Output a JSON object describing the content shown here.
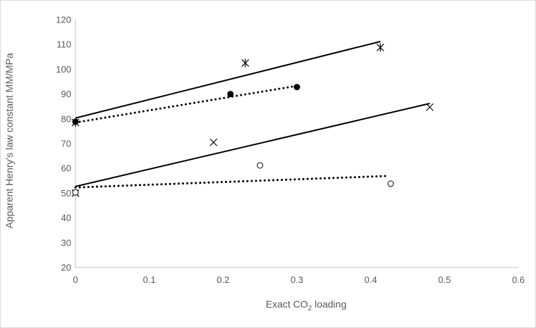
{
  "chart_data": {
    "type": "scatter",
    "xlabel": "Exact CO",
    "xlabel_sub": "2",
    "xlabel_suffix": " loading",
    "ylabel": "Apparent Henry's law constant MM/MPa",
    "xlim": [
      0,
      0.6
    ],
    "ylim": [
      20,
      120
    ],
    "x_ticks": [
      0,
      0.1,
      0.2,
      0.3,
      0.4,
      0.5,
      0.6
    ],
    "x_tick_labels": [
      "0",
      "0.1",
      "0.2",
      "0.3",
      "0.4",
      "0.5",
      "0.6"
    ],
    "y_ticks": [
      20,
      30,
      40,
      50,
      60,
      70,
      80,
      90,
      100,
      110,
      120
    ],
    "y_tick_labels": [
      "20",
      "30",
      "40",
      "50",
      "60",
      "70",
      "80",
      "90",
      "100",
      "110",
      "120"
    ],
    "grid": false,
    "legend": "none",
    "series": [
      {
        "marker": "asterisk",
        "points": [
          [
            0.0,
            78.5
          ],
          [
            0.23,
            102.5
          ],
          [
            0.413,
            108.8
          ]
        ],
        "fit": {
          "style": "solid",
          "x": [
            0.0,
            0.413
          ],
          "y": [
            80.3,
            111.2
          ]
        }
      },
      {
        "marker": "filled-circle",
        "points": [
          [
            0.0,
            78.8
          ],
          [
            0.21,
            90.0
          ],
          [
            0.3,
            92.8
          ]
        ],
        "fit": {
          "style": "dotted",
          "x": [
            0.0,
            0.3
          ],
          "y": [
            78.5,
            93.3
          ]
        }
      },
      {
        "marker": "cross",
        "points": [
          [
            0.0,
            50.0
          ],
          [
            0.187,
            70.5
          ],
          [
            0.48,
            84.7
          ]
        ],
        "fit": {
          "style": "solid",
          "x": [
            0.0,
            0.48
          ],
          "y": [
            52.7,
            86.2
          ]
        }
      },
      {
        "marker": "open-circle",
        "points": [
          [
            0.0,
            50.3
          ],
          [
            0.25,
            61.2
          ],
          [
            0.427,
            53.8
          ]
        ],
        "fit": {
          "style": "dotted",
          "x": [
            0.0,
            0.42
          ],
          "y": [
            52.3,
            56.9
          ]
        }
      }
    ]
  }
}
